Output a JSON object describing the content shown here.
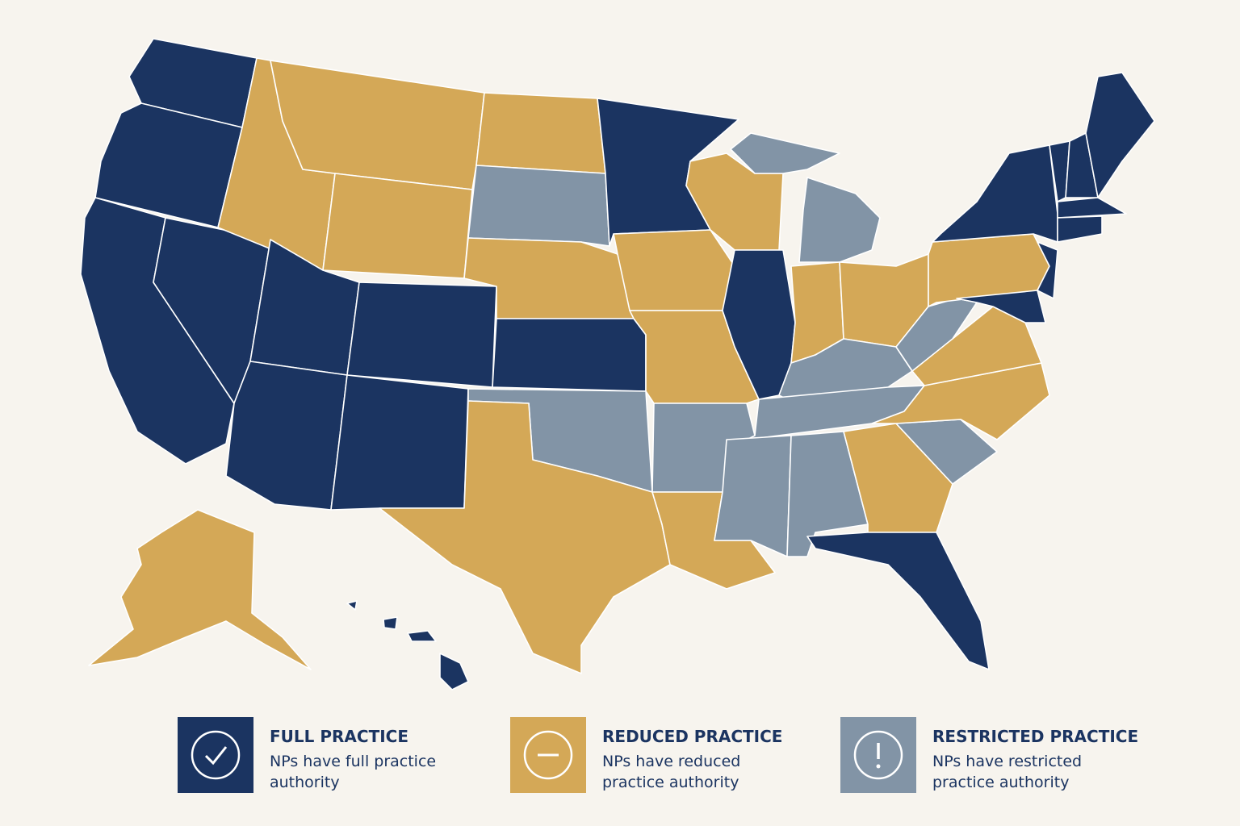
{
  "legend": [
    {
      "title": "FULL PRACTICE",
      "description": "NPs have full practice authority"
    },
    {
      "title": "REDUCED PRACTICE",
      "description": "NPs have reduced practice authority"
    },
    {
      "title": "RESTRICTED PRACTICE",
      "description": "NPs have restricted practice authority"
    }
  ]
}
